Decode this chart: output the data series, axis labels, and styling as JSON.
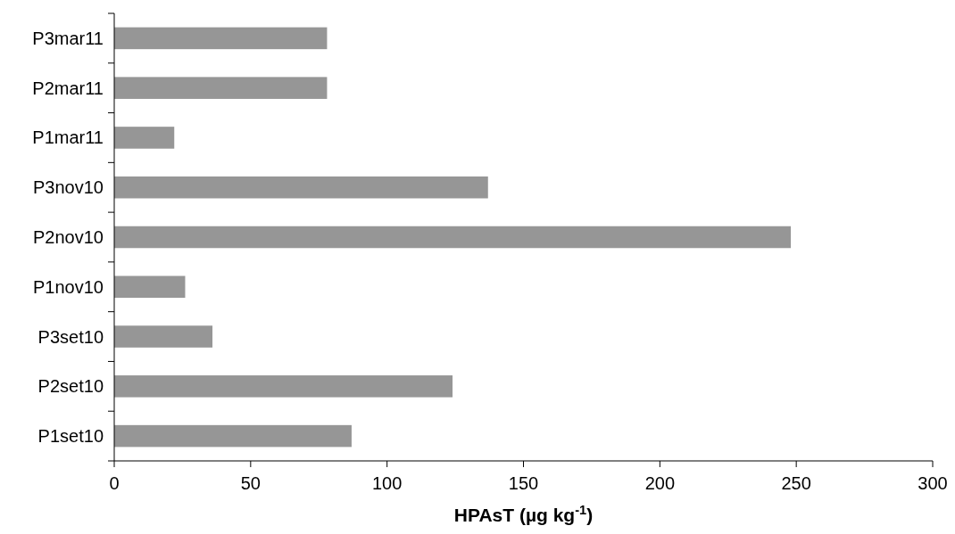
{
  "chart_data": {
    "type": "bar",
    "orientation": "horizontal",
    "categories": [
      "P3mar11",
      "P2mar11",
      "P1mar11",
      "P3nov10",
      "P2nov10",
      "P1nov10",
      "P3set10",
      "P2set10",
      "P1set10"
    ],
    "values": [
      78,
      78,
      22,
      137,
      248,
      26,
      36,
      124,
      87
    ],
    "color": "#969696",
    "xlabel": "HPAsT (µg kg$^{-1}$)",
    "xlim": [
      0,
      300
    ],
    "xticks": [
      0,
      50,
      100,
      150,
      200,
      250,
      300
    ],
    "grid": false
  }
}
